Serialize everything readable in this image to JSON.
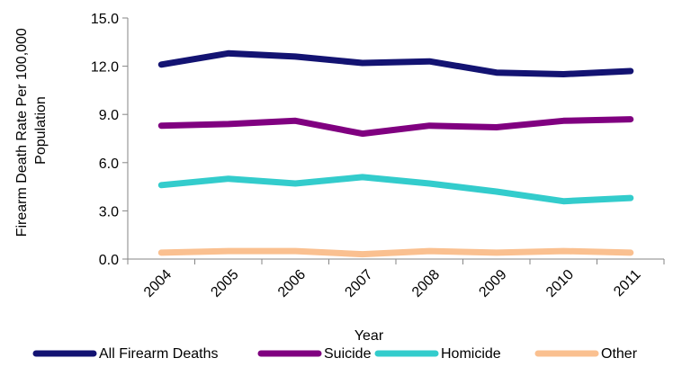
{
  "chart_data": {
    "type": "line",
    "title": "",
    "xlabel": "Year",
    "ylabel_lines": [
      "Firearm Death Rate Per 100,000",
      "Population"
    ],
    "categories": [
      "2004",
      "2005",
      "2006",
      "2007",
      "2008",
      "2009",
      "2010",
      "2011"
    ],
    "ylim": [
      0,
      15
    ],
    "yticks": [
      "0.0",
      "3.0",
      "6.0",
      "9.0",
      "12.0",
      "15.0"
    ],
    "grid": false,
    "legend_position": "bottom",
    "series": [
      {
        "name": "All Firearm Deaths",
        "color": "#131372",
        "values": [
          12.1,
          12.8,
          12.6,
          12.2,
          12.3,
          11.6,
          11.5,
          11.7
        ]
      },
      {
        "name": "Suicide",
        "color": "#800080",
        "values": [
          8.3,
          8.4,
          8.6,
          7.8,
          8.3,
          8.2,
          8.6,
          8.7
        ]
      },
      {
        "name": "Homicide",
        "color": "#33CCCC",
        "values": [
          4.6,
          5.0,
          4.7,
          5.1,
          4.7,
          4.2,
          3.6,
          3.8
        ]
      },
      {
        "name": "Other",
        "color": "#FAC090",
        "values": [
          0.4,
          0.5,
          0.5,
          0.3,
          0.5,
          0.4,
          0.5,
          0.4
        ]
      }
    ]
  }
}
